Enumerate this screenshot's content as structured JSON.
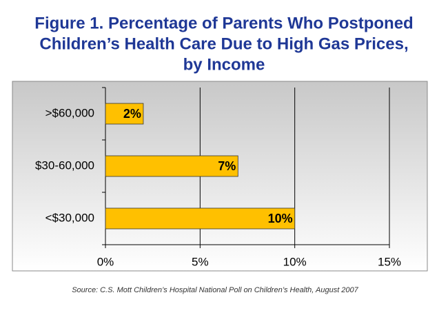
{
  "chart_data": {
    "type": "bar",
    "orientation": "horizontal",
    "title": [
      "Figure 1. Percentage of Parents Who Postponed",
      "Children’s Health Care Due to High Gas Prices,",
      "by Income"
    ],
    "categories": [
      ">$60,000",
      "$30-60,000",
      "<$30,000"
    ],
    "values": [
      2,
      7,
      10
    ],
    "value_labels": [
      "2%",
      "7%",
      "10%"
    ],
    "color": "#ffc000",
    "xlim": [
      0,
      15
    ],
    "xticks": [
      {
        "value": 0,
        "label": "0%"
      },
      {
        "value": 5,
        "label": "5%"
      },
      {
        "value": 10,
        "label": "10%"
      },
      {
        "value": 15,
        "label": "15%"
      }
    ],
    "grid": true,
    "source": "Source: C.S. Mott Children’s Hospital National Poll on Children’s Health, August 2007"
  }
}
